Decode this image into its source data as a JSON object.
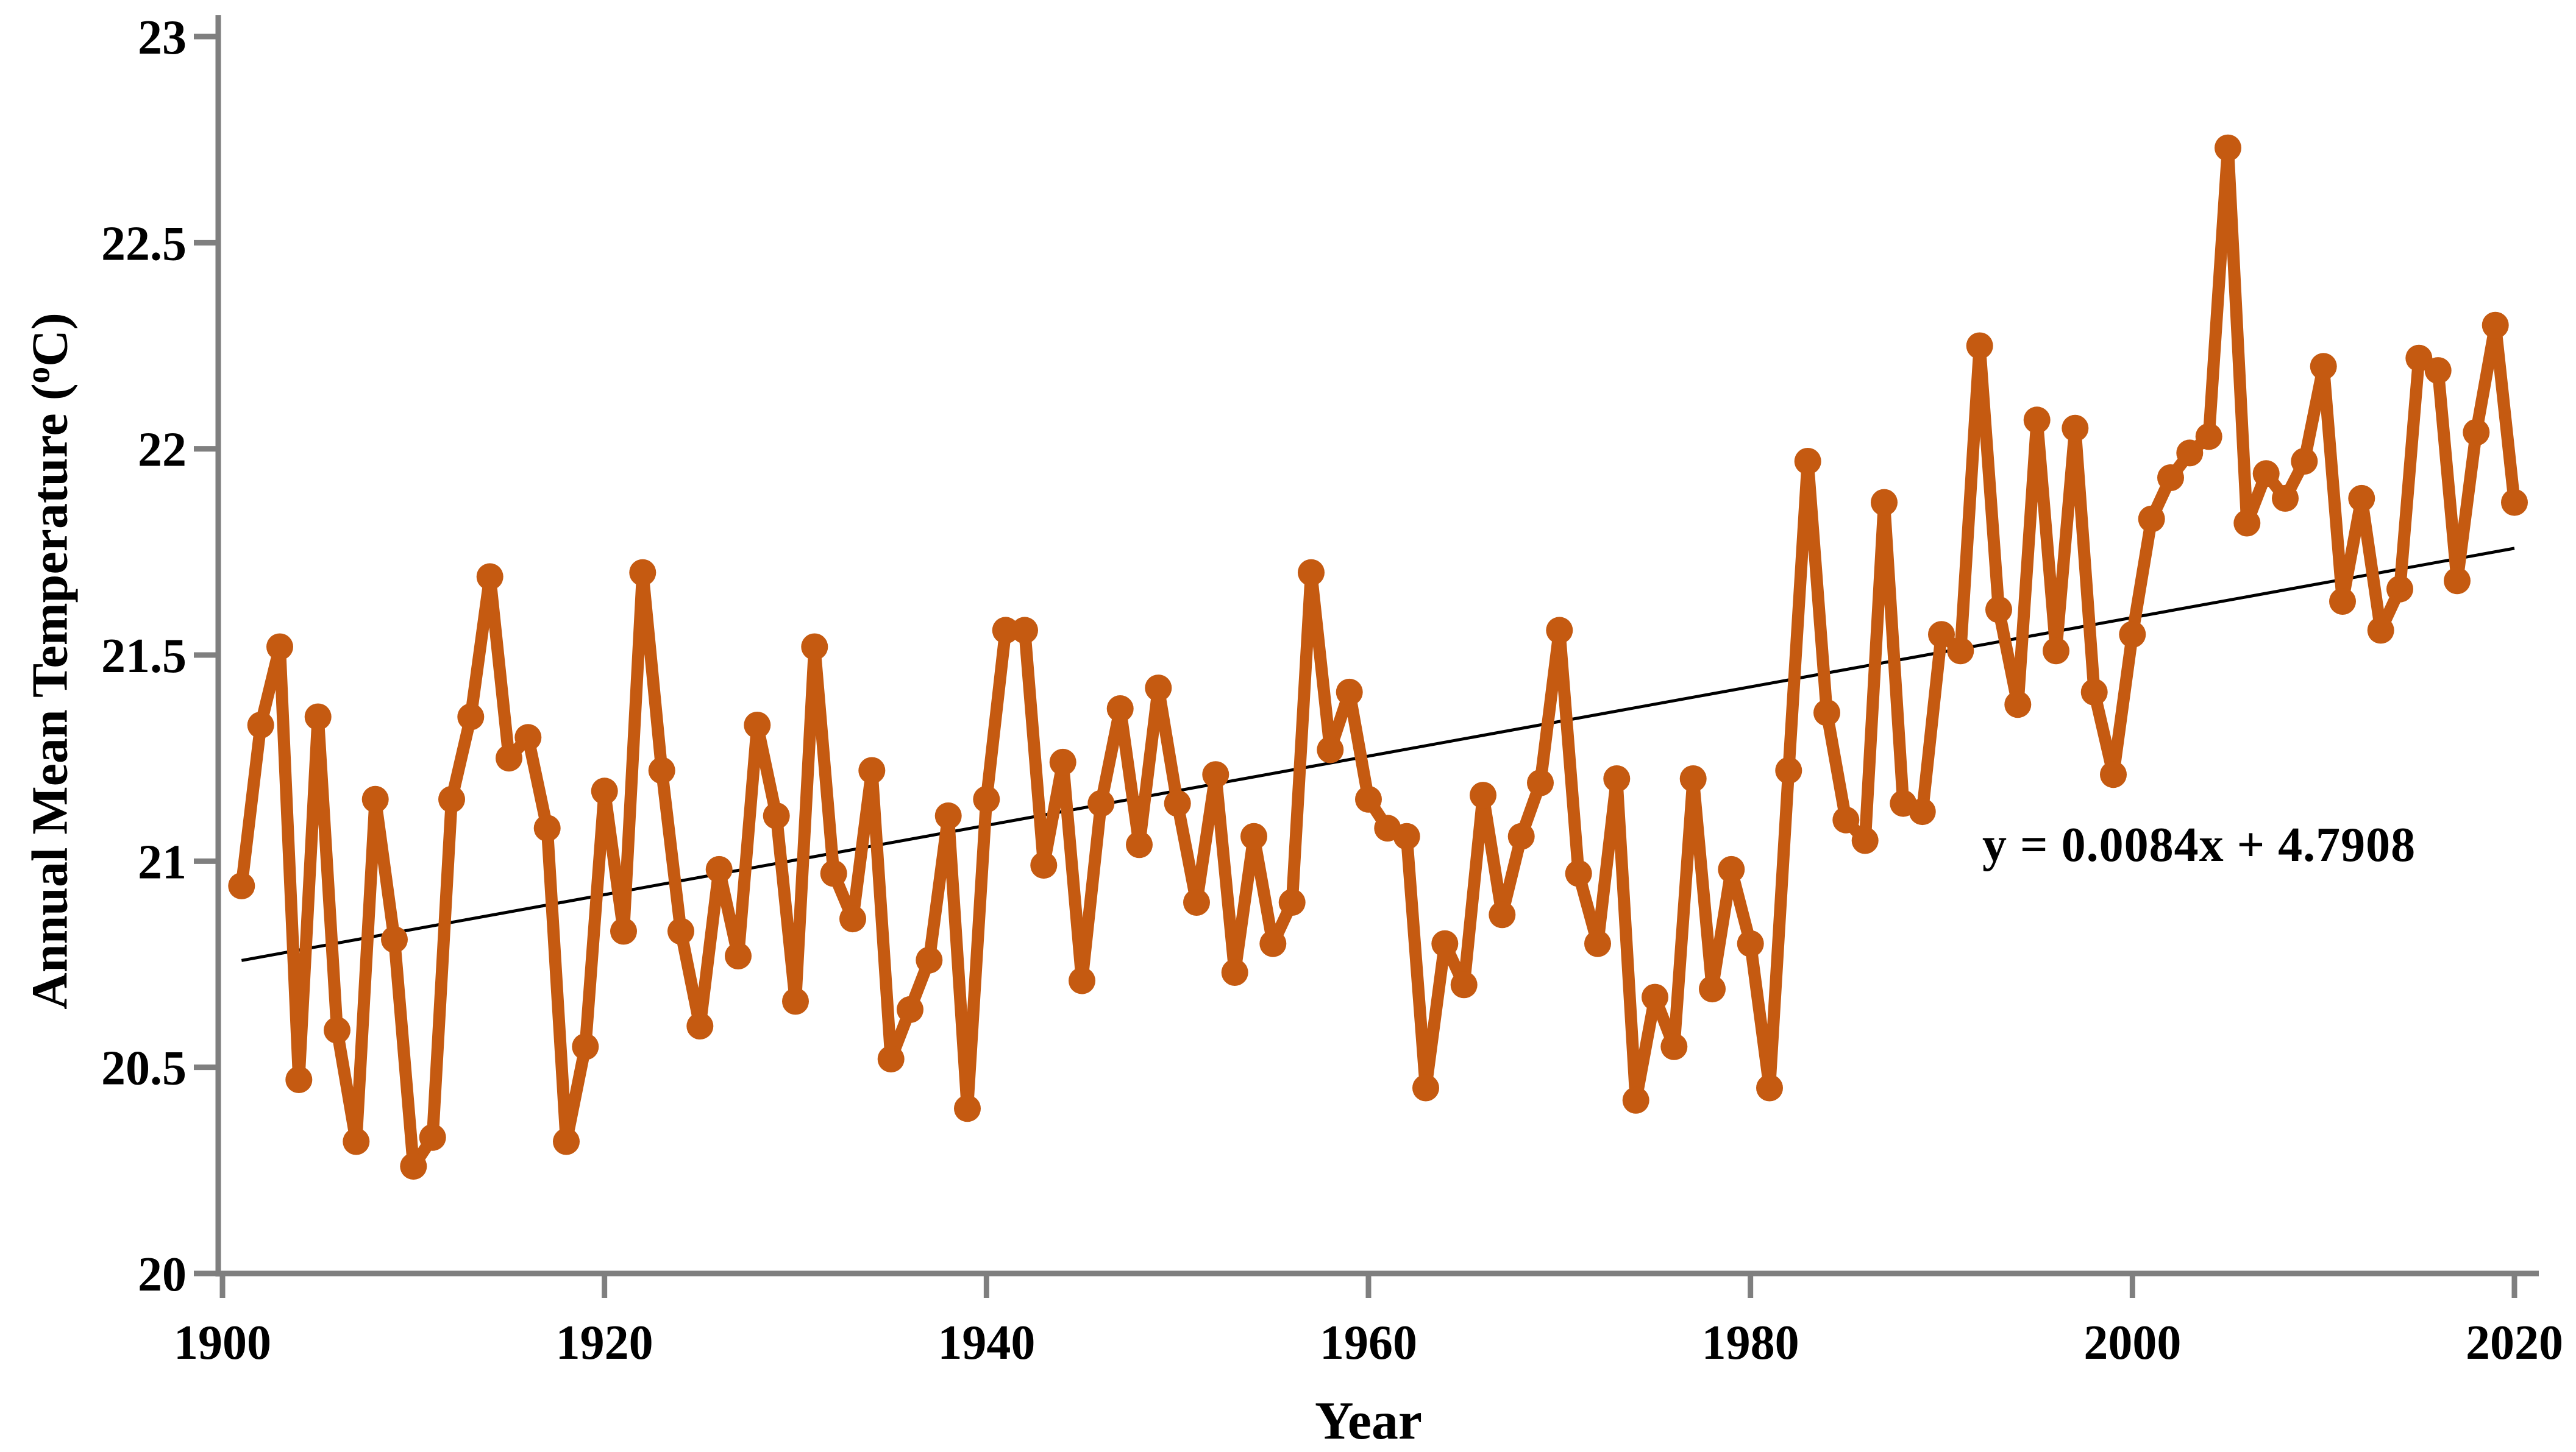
{
  "figure": {
    "equation_label": "y = 0.0084x + 4.7908",
    "x_axis_title": "Year",
    "y_axis_title_prefix": "Annual Mean Temperature (",
    "y_axis_title_degree": "o",
    "y_axis_title_suffix": "C)",
    "colors": {
      "series": "#C55A11",
      "trend_line": "#000000",
      "axis": "#7F7F7F",
      "text": "#000000",
      "background": "#FFFFFF"
    }
  },
  "chart_data": {
    "type": "line",
    "title": "",
    "xlabel": "Year",
    "ylabel": "Annual Mean Temperature (oC)",
    "legend_position": "none",
    "grid": false,
    "xlim": [
      1900,
      2021
    ],
    "ylim": [
      20,
      23
    ],
    "x_tick_labels": [
      "1900",
      "1920",
      "1940",
      "1960",
      "1980",
      "2000",
      "2020"
    ],
    "x_ticks": [
      1900,
      1920,
      1940,
      1960,
      1980,
      2000,
      2020
    ],
    "y_tick_labels": [
      "20",
      "20.5",
      "21",
      "21.5",
      "22",
      "22.5",
      "23"
    ],
    "y_ticks": [
      20,
      20.5,
      21,
      21.5,
      22,
      22.5,
      23
    ],
    "trend": {
      "slope": 0.0084,
      "intercept": 4.7908,
      "label": "y = 0.0084x + 4.7908",
      "x_start": 1901,
      "x_end": 2020
    },
    "series": [
      {
        "name": "Annual Mean Temperature",
        "color": "#C55A11",
        "marker": "circle",
        "x_start": 1901,
        "x_end": 2020,
        "values": [
          20.94,
          21.33,
          21.52,
          20.47,
          21.35,
          20.59,
          20.32,
          21.15,
          20.81,
          20.26,
          20.33,
          21.15,
          21.35,
          21.69,
          21.25,
          21.3,
          21.08,
          20.32,
          20.55,
          21.17,
          20.83,
          21.7,
          21.22,
          20.83,
          20.6,
          20.98,
          20.77,
          21.33,
          21.11,
          20.66,
          21.52,
          20.97,
          20.86,
          21.22,
          20.52,
          20.64,
          20.76,
          21.11,
          20.4,
          21.15,
          21.56,
          21.56,
          20.99,
          21.24,
          20.71,
          21.14,
          21.37,
          21.04,
          21.42,
          21.14,
          20.9,
          21.21,
          20.73,
          21.06,
          20.8,
          20.9,
          21.7,
          21.27,
          21.41,
          21.15,
          21.08,
          21.06,
          20.45,
          20.8,
          20.7,
          21.16,
          20.87,
          21.06,
          21.19,
          21.56,
          20.97,
          20.8,
          21.2,
          20.42,
          20.67,
          20.55,
          21.2,
          20.69,
          20.98,
          20.8,
          20.45,
          21.22,
          21.97,
          21.36,
          21.1,
          21.05,
          21.87,
          21.14,
          21.12,
          21.55,
          21.51,
          22.25,
          21.61,
          21.38,
          22.07,
          21.51,
          22.05,
          21.41,
          21.21,
          21.55,
          21.83,
          21.93,
          21.99,
          22.03,
          22.73,
          21.82,
          21.94,
          21.88,
          21.97,
          22.2,
          21.63,
          21.88,
          21.56,
          21.66,
          22.22,
          22.19,
          21.68,
          22.04,
          22.3,
          21.87
        ]
      }
    ]
  }
}
